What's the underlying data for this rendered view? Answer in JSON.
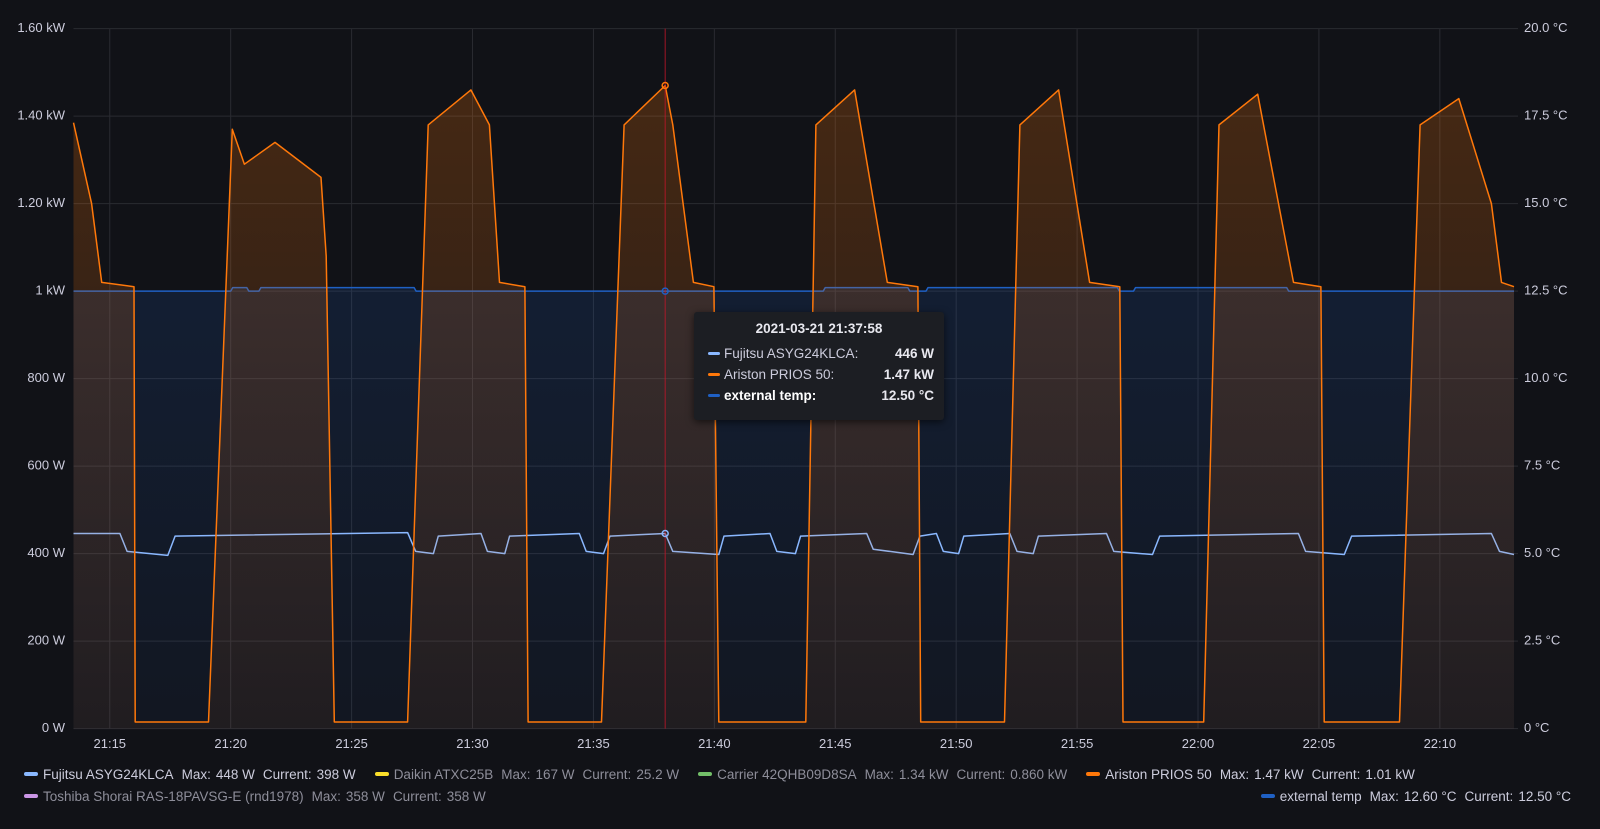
{
  "chart_data": {
    "type": "line",
    "xlim": [
      "21:13:30",
      "22:13:04"
    ],
    "xticks": [
      "21:15",
      "21:20",
      "21:25",
      "21:30",
      "21:35",
      "21:40",
      "21:45",
      "21:50",
      "21:55",
      "22:00",
      "22:05",
      "22:10"
    ],
    "ylim": [
      0,
      1600
    ],
    "yticks": [
      {
        "value": 0,
        "label": "0 W"
      },
      {
        "value": 200,
        "label": "200 W"
      },
      {
        "value": 400,
        "label": "400 W"
      },
      {
        "value": 600,
        "label": "600 W"
      },
      {
        "value": 800,
        "label": "800 W"
      },
      {
        "value": 1000,
        "label": "1 kW"
      },
      {
        "value": 1200,
        "label": "1.20 kW"
      },
      {
        "value": 1400,
        "label": "1.40 kW"
      },
      {
        "value": 1600,
        "label": "1.60 kW"
      }
    ],
    "y2lim": [
      0,
      20
    ],
    "y2ticks": [
      {
        "value": 0,
        "label": "0 °C"
      },
      {
        "value": 2.5,
        "label": "2.5 °C"
      },
      {
        "value": 5,
        "label": "5.0 °C"
      },
      {
        "value": 7.5,
        "label": "7.5 °C"
      },
      {
        "value": 10,
        "label": "10.0 °C"
      },
      {
        "value": 12.5,
        "label": "12.5 °C"
      },
      {
        "value": 15,
        "label": "15.0 °C"
      },
      {
        "value": 17.5,
        "label": "17.5 °C"
      },
      {
        "value": 20,
        "label": "20.0 °C"
      }
    ],
    "grid": true,
    "legend_labels": {
      "max": "Max:",
      "current": "Current:"
    },
    "series": [
      {
        "name": "Fujitsu ASYG24KLCA",
        "color": "#8ab8ff",
        "fill": false,
        "x": [
          "21:13:30",
          "21:15:25",
          "21:15:43",
          "21:17:24",
          "21:17:42",
          "21:27:19",
          "21:27:39",
          "21:28:23",
          "21:28:35",
          "21:30:21",
          "21:30:37",
          "21:31:20",
          "21:31:32",
          "21:34:25",
          "21:34:42",
          "21:35:25",
          "21:35:41",
          "21:37:58",
          "21:38:17",
          "21:40:11",
          "21:40:24",
          "21:42:18",
          "21:42:35",
          "21:43:21",
          "21:43:34",
          "21:46:18",
          "21:46:34",
          "21:48:13",
          "21:48:30",
          "21:49:11",
          "21:49:28",
          "21:50:06",
          "21:50:19",
          "21:52:13",
          "21:52:31",
          "21:53:11",
          "21:53:24",
          "21:56:13",
          "21:56:31",
          "21:58:07",
          "21:58:25",
          "22:04:09",
          "22:04:27",
          "22:06:03",
          "22:06:21",
          "22:12:08",
          "22:12:28",
          "22:13:04"
        ],
        "values": [
          446,
          446,
          405,
          396,
          440,
          448,
          405,
          400,
          440,
          446,
          405,
          400,
          440,
          446,
          405,
          400,
          440,
          446,
          405,
          398,
          440,
          446,
          405,
          400,
          440,
          446,
          410,
          398,
          440,
          446,
          405,
          400,
          440,
          446,
          405,
          400,
          440,
          446,
          405,
          398,
          440,
          446,
          405,
          398,
          440,
          446,
          405,
          398
        ],
        "max": 448,
        "max_label": "448 W",
        "current": 398,
        "current_label": "398 W"
      },
      {
        "name": "Daikin ATXC25B",
        "color": "#fade2a",
        "hidden": true,
        "max": 167,
        "max_label": "167 W",
        "current": 25.2,
        "current_label": "25.2 W"
      },
      {
        "name": "Carrier 42QHB09D8SA",
        "color": "#73bf69",
        "hidden": true,
        "max": 1340,
        "max_label": "1.34 kW",
        "current": 860,
        "current_label": "0.860 kW"
      },
      {
        "name": "Ariston PRIOS 50",
        "color": "#ff780a",
        "fill": true,
        "x": [
          "21:13:30",
          "21:14:15",
          "21:14:40",
          "21:16:00",
          "21:16:03",
          "21:19:05",
          "21:20:04",
          "21:20:34",
          "21:21:50",
          "21:23:44",
          "21:23:57",
          "21:24:17",
          "21:27:19",
          "21:28:10",
          "21:29:56",
          "21:30:42",
          "21:31:07",
          "21:32:10",
          "21:32:18",
          "21:35:20",
          "21:36:16",
          "21:37:58",
          "21:38:17",
          "21:39:08",
          "21:39:59",
          "21:40:11",
          "21:43:47",
          "21:44:12",
          "21:45:48",
          "21:47:09",
          "21:48:25",
          "21:48:32",
          "21:52:00",
          "21:52:38",
          "21:54:14",
          "21:55:31",
          "21:56:46",
          "21:56:54",
          "22:00:14",
          "22:00:52",
          "22:02:28",
          "22:03:57",
          "22:05:05",
          "22:05:13",
          "22:08:20",
          "22:09:11",
          "22:10:47",
          "22:12:08",
          "22:12:33",
          "22:13:04"
        ],
        "values": [
          1385,
          1200,
          1020,
          1010,
          15,
          15,
          1370,
          1290,
          1340,
          1260,
          1080,
          15,
          15,
          1380,
          1460,
          1380,
          1020,
          1010,
          15,
          15,
          1380,
          1470,
          1380,
          1020,
          1010,
          15,
          15,
          1380,
          1460,
          1020,
          1010,
          15,
          15,
          1380,
          1460,
          1020,
          1010,
          15,
          15,
          1380,
          1450,
          1020,
          1010,
          15,
          15,
          1380,
          1440,
          1200,
          1020,
          1010
        ],
        "max": 1470,
        "max_label": "1.47 kW",
        "current": 1010,
        "current_label": "1.01 kW"
      },
      {
        "name": "Toshiba Shorai RAS-18PAVSG-E (rnd1978)",
        "color": "#ca95e5",
        "hidden": true,
        "max": 358,
        "max_label": "358 W",
        "current": 358,
        "current_label": "358 W"
      },
      {
        "name": "external temp",
        "color": "#1f60c4",
        "axis": "y2",
        "fill": true,
        "x": [
          "21:13:30",
          "21:20:00",
          "21:20:05",
          "21:20:40",
          "21:20:45",
          "21:21:10",
          "21:21:15",
          "21:27:35",
          "21:27:40",
          "21:44:30",
          "21:44:35",
          "21:48:00",
          "21:48:05",
          "21:48:45",
          "21:48:50",
          "21:56:40",
          "21:56:45",
          "21:57:20",
          "21:57:25",
          "22:03:40",
          "22:03:45",
          "22:13:04"
        ],
        "values": [
          12.5,
          12.5,
          12.6,
          12.6,
          12.5,
          12.5,
          12.6,
          12.6,
          12.5,
          12.5,
          12.6,
          12.6,
          12.5,
          12.5,
          12.6,
          12.6,
          12.5,
          12.5,
          12.6,
          12.6,
          12.5,
          12.5
        ],
        "max": 12.6,
        "max_label": "12.60 °C",
        "current": 12.5,
        "current_label": "12.50 °C"
      }
    ],
    "tooltip": {
      "title": "2021-03-21 21:37:58",
      "rows": [
        {
          "name": "Fujitsu ASYG24KLCA:",
          "color": "#8ab8ff",
          "value": 446,
          "value_label": "446 W"
        },
        {
          "name": "Ariston PRIOS 50:",
          "color": "#ff780a",
          "value": 1470,
          "value_label": "1.47 kW"
        },
        {
          "name": "external temp:",
          "color": "#1f60c4",
          "value": 12.5,
          "value_label": "12.50 °C",
          "highlighted": true
        }
      ]
    }
  }
}
